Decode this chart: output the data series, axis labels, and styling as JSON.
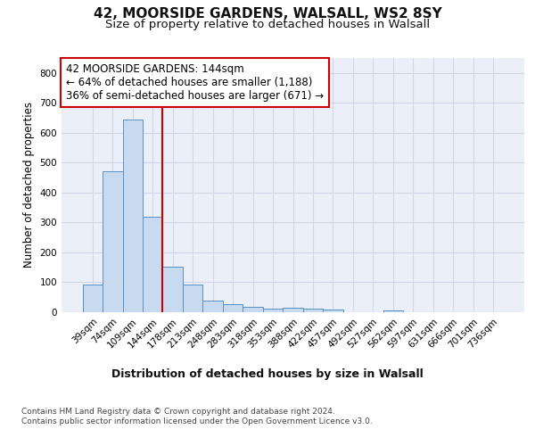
{
  "title_line1": "42, MOORSIDE GARDENS, WALSALL, WS2 8SY",
  "title_line2": "Size of property relative to detached houses in Walsall",
  "xlabel": "Distribution of detached houses by size in Walsall",
  "ylabel": "Number of detached properties",
  "categories": [
    "39sqm",
    "74sqm",
    "109sqm",
    "144sqm",
    "178sqm",
    "213sqm",
    "248sqm",
    "283sqm",
    "318sqm",
    "353sqm",
    "388sqm",
    "422sqm",
    "457sqm",
    "492sqm",
    "527sqm",
    "562sqm",
    "597sqm",
    "631sqm",
    "666sqm",
    "701sqm",
    "736sqm"
  ],
  "values": [
    93,
    470,
    645,
    318,
    153,
    93,
    40,
    28,
    18,
    13,
    16,
    12,
    9,
    0,
    0,
    7,
    0,
    0,
    0,
    0,
    0
  ],
  "bar_color": "#c8daf0",
  "bar_edge_color": "#5a8fc3",
  "red_line_index": 3,
  "red_line_color": "#cc0000",
  "annotation_text": "42 MOORSIDE GARDENS: 144sqm\n← 64% of detached houses are smaller (1,188)\n36% of semi-detached houses are larger (671) →",
  "annotation_box_color": "#ffffff",
  "annotation_box_edge": "#cc0000",
  "ylim": [
    0,
    850
  ],
  "yticks": [
    0,
    100,
    200,
    300,
    400,
    500,
    600,
    700,
    800
  ],
  "grid_color": "#d0d8e8",
  "background_color": "#eaeff8",
  "footer_text": "Contains HM Land Registry data © Crown copyright and database right 2024.\nContains public sector information licensed under the Open Government Licence v3.0.",
  "title_fontsize": 11,
  "subtitle_fontsize": 9.5,
  "xlabel_fontsize": 9,
  "ylabel_fontsize": 8.5,
  "tick_fontsize": 7.5,
  "annotation_fontsize": 8.5,
  "footer_fontsize": 6.5
}
